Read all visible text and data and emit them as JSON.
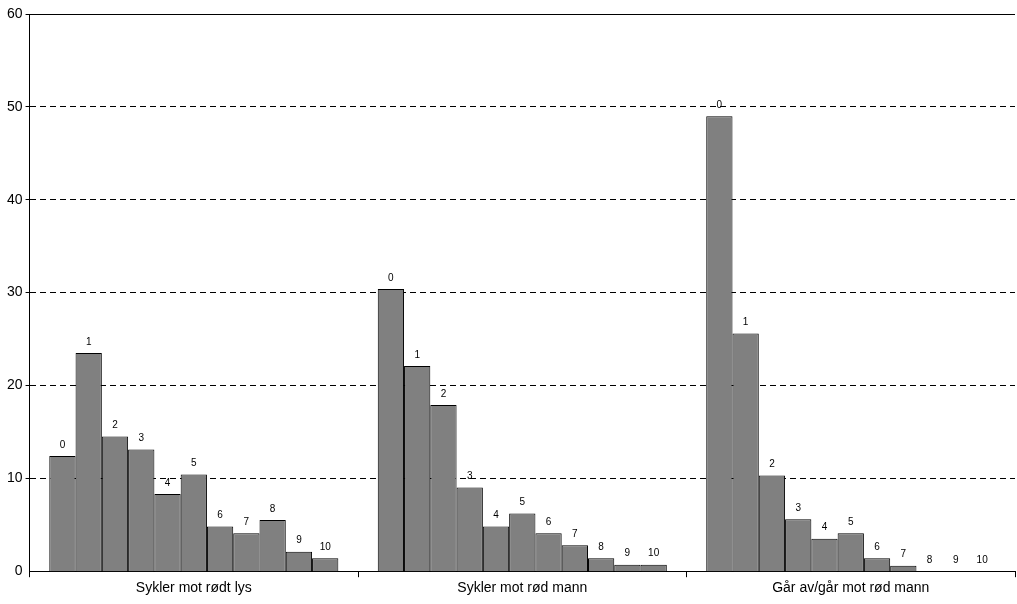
{
  "chart_data": {
    "type": "bar",
    "categories": [
      "Sykler mot rødt lys",
      "Sykler mot rød mann",
      "Går av/går mot rød mann"
    ],
    "series": [
      {
        "name": "0",
        "color": "#808080",
        "values": [
          12.4,
          30.4,
          49.0
        ]
      },
      {
        "name": "1",
        "color": "#808080",
        "values": [
          23.5,
          22.1,
          25.6
        ]
      },
      {
        "name": "2",
        "color": "#808080",
        "values": [
          14.5,
          17.9,
          10.3
        ]
      },
      {
        "name": "3",
        "color": "#808080",
        "values": [
          13.1,
          9.0,
          5.6
        ]
      },
      {
        "name": "4",
        "color": "#808080",
        "values": [
          8.3,
          4.8,
          3.5
        ]
      },
      {
        "name": "5",
        "color": "#808080",
        "values": [
          10.4,
          6.2,
          4.1
        ]
      },
      {
        "name": "6",
        "color": "#808080",
        "values": [
          4.8,
          4.1,
          1.4
        ]
      },
      {
        "name": "7",
        "color": "#808080",
        "values": [
          4.1,
          2.8,
          0.6
        ]
      },
      {
        "name": "8",
        "color": "#808080",
        "values": [
          5.5,
          1.4,
          0
        ]
      },
      {
        "name": "9",
        "color": "#808080",
        "values": [
          2.1,
          0.7,
          0
        ]
      },
      {
        "name": "10",
        "color": "#808080",
        "values": [
          1.4,
          0.7,
          0
        ]
      }
    ],
    "ylim": [
      0,
      60
    ],
    "yticks": [
      0,
      10,
      20,
      30,
      40,
      50,
      60
    ],
    "grid": "y",
    "legend": false
  }
}
